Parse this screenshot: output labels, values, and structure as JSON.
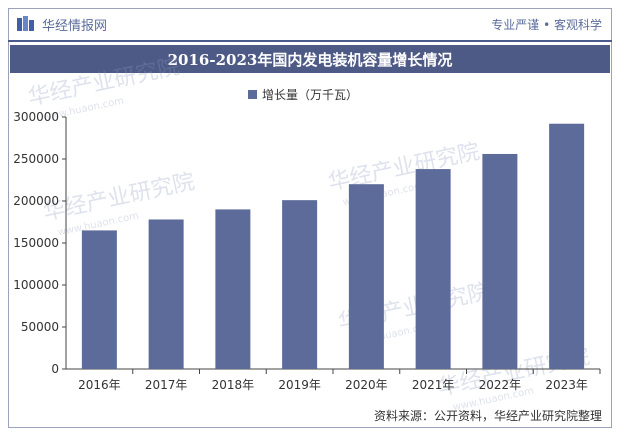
{
  "header": {
    "brand": "华经情报网",
    "slogan": "专业严谨 • 客观科学"
  },
  "watermark": {
    "text": "华经产业研究院",
    "subtext": "www.huaon.com"
  },
  "source": "资料来源：公开资料，华经产业研究院整理",
  "colors": {
    "bar": "#5c6b9a",
    "title_bg": "#4e5a86"
  },
  "chart_data": {
    "type": "bar",
    "title": "2016-2023年国内发电装机容量增长情况",
    "categories": [
      "2016年",
      "2017年",
      "2018年",
      "2019年",
      "2020年",
      "2021年",
      "2022年",
      "2023年"
    ],
    "series": [
      {
        "name": "增长量（万千瓦）",
        "values": [
          165000,
          178000,
          190000,
          201000,
          220000,
          238000,
          256000,
          292000
        ]
      }
    ],
    "ylim": [
      0,
      300000
    ],
    "yticks": [
      "0",
      "50000",
      "100000",
      "150000",
      "200000",
      "250000",
      "300000"
    ],
    "xlabel": "",
    "ylabel": "",
    "legend_position": "top-center",
    "grid": false
  }
}
